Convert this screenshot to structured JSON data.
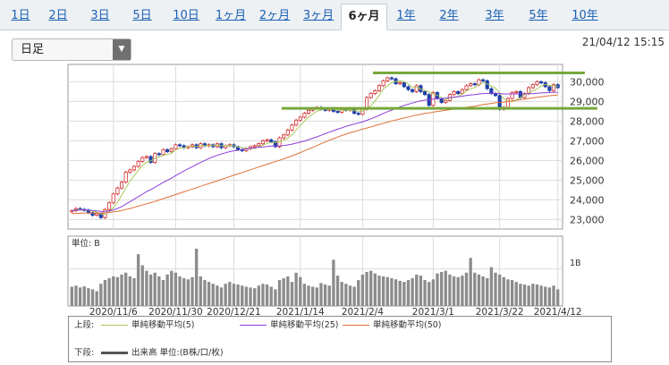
{
  "tabs": [
    {
      "label": "1日",
      "active": false
    },
    {
      "label": "2日",
      "active": false
    },
    {
      "label": "3日",
      "active": false
    },
    {
      "label": "5日",
      "active": false
    },
    {
      "label": "10日",
      "active": false
    },
    {
      "label": "1ヶ月",
      "active": false
    },
    {
      "label": "2ヶ月",
      "active": false
    },
    {
      "label": "3ヶ月",
      "active": false
    },
    {
      "label": "6ヶ月",
      "active": true
    },
    {
      "label": "1年",
      "active": false
    },
    {
      "label": "2年",
      "active": false
    },
    {
      "label": "3年",
      "active": false
    },
    {
      "label": "5年",
      "active": false
    },
    {
      "label": "10年",
      "active": false
    }
  ],
  "period_select": {
    "value": "日足"
  },
  "timestamp": "21/04/12 15:15",
  "legend": {
    "upper_label": "上段:",
    "lower_label": "下段:",
    "items": [
      {
        "label": "単純移動平均(5)",
        "color": "#a8c85a"
      },
      {
        "label": "単純移動平均(25)",
        "color": "#8b3fd9"
      },
      {
        "label": "単純移動平均(50)",
        "color": "#e0703a"
      }
    ],
    "volume_label": "出来高 単位:(B株/口/枚)"
  },
  "chart_data": {
    "type": "candlestick",
    "price_axis": {
      "ylim": [
        22700,
        30700
      ],
      "ticks": [
        "30,000",
        "29,000",
        "28,000",
        "27,000",
        "26,000",
        "25,000",
        "24,000",
        "23,000"
      ],
      "tick_values": [
        30000,
        29000,
        28000,
        27000,
        26000,
        25000,
        24000,
        23000
      ]
    },
    "x_tick_labels": [
      "2020/11/6",
      "2020/11/30",
      "2020/12/21",
      "2021/1/14",
      "2021/2/4",
      "2021/3/1",
      "2021/3/22",
      "2021/4/12"
    ],
    "x_tick_index": [
      10,
      25,
      39,
      55,
      70,
      87,
      103,
      117
    ],
    "candle_colors": {
      "up": "#d32f2f",
      "down": "#1f3fa8"
    },
    "close": [
      23450,
      23560,
      23520,
      23480,
      23350,
      23220,
      23300,
      23100,
      23510,
      23850,
      24300,
      24600,
      24900,
      25400,
      25520,
      25700,
      25950,
      26150,
      26200,
      25900,
      26350,
      26300,
      26550,
      26450,
      26600,
      26800,
      26750,
      26650,
      26700,
      26800,
      26650,
      26850,
      26750,
      26800,
      26700,
      26850,
      26650,
      26750,
      26800,
      26700,
      26550,
      26500,
      26600,
      26700,
      26750,
      26850,
      27000,
      27050,
      26950,
      26700,
      27150,
      27300,
      27550,
      27800,
      28050,
      28200,
      28400,
      28550,
      28650,
      28700,
      28600,
      28550,
      28650,
      28500,
      28450,
      28600,
      28550,
      28650,
      28400,
      28350,
      28600,
      29200,
      29400,
      29550,
      29800,
      30050,
      30200,
      30150,
      29900,
      29950,
      29750,
      29600,
      29500,
      29800,
      29500,
      29350,
      28800,
      29450,
      29150,
      28950,
      29050,
      29350,
      29500,
      29400,
      29600,
      29800,
      29900,
      29850,
      30100,
      30050,
      29650,
      29400,
      29300,
      28600,
      28700,
      29150,
      29450,
      29500,
      29200,
      29400,
      29700,
      29850,
      30000,
      29950,
      29750,
      29550,
      29850,
      29700
    ],
    "ma_5": [
      23450,
      23505,
      23510,
      23503,
      23472,
      23426,
      23374,
      23274,
      23276,
      23396,
      23612,
      23872,
      24232,
      24610,
      24944,
      25224,
      25494,
      25744,
      25904,
      25980,
      26110,
      26180,
      26260,
      26300,
      26370,
      26540,
      26630,
      26650,
      26700,
      26740,
      26710,
      26750,
      26750,
      26770,
      26750,
      26790,
      26750,
      26750,
      26760,
      26750,
      26690,
      26660,
      26630,
      26610,
      26620,
      26680,
      26780,
      26870,
      26920,
      26910,
      26970,
      27030,
      27130,
      27300,
      27550,
      27780,
      28000,
      28200,
      28370,
      28500,
      28580,
      28610,
      28610,
      28600,
      28550,
      28550,
      28550,
      28550,
      28530,
      28510,
      28510,
      28640,
      28790,
      29020,
      29310,
      29640,
      29800,
      29950,
      30020,
      30050,
      30010,
      29890,
      29740,
      29720,
      29630,
      29550,
      29490,
      29380,
      29320,
      29200,
      29080,
      29190,
      29200,
      29250,
      29380,
      29530,
      29640,
      29710,
      29850,
      29960,
      29890,
      29790,
      29680,
      29420,
      29130,
      29030,
      28980,
      29080,
      29200,
      29350,
      29450,
      29530,
      29630,
      29780,
      29870,
      29820,
      29800,
      29760
    ],
    "ma_25": [
      23450,
      23480,
      23490,
      23500,
      23480,
      23460,
      23440,
      23420,
      23420,
      23440,
      23490,
      23570,
      23660,
      23780,
      23900,
      24030,
      24160,
      24290,
      24420,
      24520,
      24640,
      24760,
      24880,
      24990,
      25100,
      25230,
      25350,
      25470,
      25580,
      25680,
      25790,
      25900,
      26000,
      26100,
      26180,
      26260,
      26330,
      26390,
      26450,
      26490,
      26530,
      26560,
      26590,
      26620,
      26650,
      26670,
      26690,
      26710,
      26730,
      26730,
      26740,
      26760,
      26790,
      26830,
      26880,
      26930,
      26990,
      27060,
      27130,
      27200,
      27280,
      27360,
      27440,
      27520,
      27590,
      27660,
      27730,
      27790,
      27850,
      27910,
      27970,
      28040,
      28120,
      28200,
      28290,
      28390,
      28480,
      28560,
      28640,
      28720,
      28800,
      28860,
      28920,
      28980,
      29030,
      29070,
      29090,
      29120,
      29140,
      29150,
      29170,
      29200,
      29220,
      29240,
      29270,
      29300,
      29330,
      29350,
      29380,
      29400,
      29410,
      29410,
      29420,
      29400,
      29380,
      29380,
      29380,
      29380,
      29380,
      29380,
      29390,
      29400,
      29420,
      29430,
      29440,
      29450,
      29460,
      29460
    ],
    "ma_50": [
      23300,
      23310,
      23320,
      23330,
      23330,
      23330,
      23330,
      23330,
      23340,
      23360,
      23390,
      23420,
      23460,
      23510,
      23560,
      23620,
      23680,
      23740,
      23800,
      23860,
      23920,
      23990,
      24060,
      24130,
      24200,
      24270,
      24340,
      24410,
      24480,
      24550,
      24620,
      24690,
      24760,
      24830,
      24900,
      24970,
      25040,
      25110,
      25180,
      25250,
      25320,
      25390,
      25460,
      25530,
      25600,
      25670,
      25740,
      25810,
      25880,
      25940,
      26010,
      26080,
      26160,
      26240,
      26320,
      26400,
      26490,
      26580,
      26670,
      26760,
      26850,
      26940,
      27030,
      27110,
      27190,
      27270,
      27340,
      27410,
      27470,
      27530,
      27590,
      27650,
      27710,
      27770,
      27830,
      27890,
      27950,
      28010,
      28060,
      28110,
      28160,
      28210,
      28260,
      28310,
      28350,
      28390,
      28420,
      28460,
      28490,
      28520,
      28550,
      28580,
      28610,
      28640,
      28670,
      28700,
      28730,
      28760,
      28800,
      28840,
      28870,
      28900,
      28930,
      28950,
      28970,
      29000,
      29030,
      29060,
      29090,
      29120,
      29150,
      29180,
      29210,
      29240,
      29270,
      29290,
      29310,
      29330
    ],
    "support_lines": [
      {
        "y": 30450,
        "x_from_index": 73,
        "x_to_index": 124,
        "color": "#76a83a"
      },
      {
        "y": 28650,
        "x_from_index": 51,
        "x_to_index": 127,
        "color": "#76a83a"
      }
    ],
    "volume": {
      "unit_label": "単位: B",
      "tick_label": "1B",
      "tick_value": 1.0,
      "ymax": 1.5,
      "values": [
        0.52,
        0.55,
        0.5,
        0.53,
        0.48,
        0.45,
        0.4,
        0.6,
        0.7,
        0.75,
        0.8,
        0.78,
        0.85,
        0.9,
        0.8,
        0.75,
        1.4,
        1.1,
        0.95,
        0.85,
        0.9,
        0.8,
        0.7,
        0.85,
        0.95,
        0.9,
        0.8,
        0.75,
        0.72,
        0.78,
        1.55,
        0.8,
        0.7,
        0.65,
        0.6,
        0.55,
        0.5,
        0.6,
        0.65,
        0.6,
        0.58,
        0.55,
        0.52,
        0.5,
        0.48,
        0.55,
        0.6,
        0.58,
        0.52,
        0.45,
        0.7,
        0.75,
        0.8,
        0.65,
        0.9,
        0.78,
        0.6,
        0.55,
        0.52,
        0.5,
        0.62,
        0.58,
        0.55,
        1.25,
        0.82,
        0.65,
        0.6,
        0.55,
        0.52,
        0.7,
        0.85,
        0.92,
        0.95,
        0.88,
        0.82,
        0.8,
        0.78,
        0.75,
        0.72,
        0.68,
        0.65,
        0.7,
        0.75,
        0.85,
        0.82,
        0.7,
        0.65,
        0.72,
        0.88,
        0.92,
        0.95,
        0.85,
        0.8,
        0.78,
        0.82,
        0.9,
        1.3,
        0.9,
        0.85,
        0.8,
        0.75,
        1.05,
        0.9,
        0.85,
        0.78,
        0.72,
        0.7,
        0.65,
        0.6,
        0.58,
        0.55,
        0.6,
        0.58,
        0.55,
        0.52,
        0.5,
        0.55,
        0.45
      ]
    }
  }
}
